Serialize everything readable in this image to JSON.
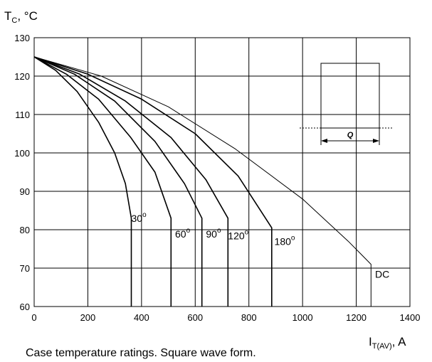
{
  "chart_data": {
    "type": "line",
    "title": "",
    "caption": "Case temperature ratings. Square wave form.",
    "ylabel": {
      "main": "T",
      "sub": "C",
      "rest": ", °C"
    },
    "xlabel": {
      "main": "I",
      "sub": "T(AV)",
      "rest": ", A"
    },
    "xlim": [
      0,
      1400
    ],
    "ylim": [
      60,
      130
    ],
    "xticks": [
      0,
      200,
      400,
      600,
      800,
      1000,
      1200,
      1400
    ],
    "yticks": [
      60,
      70,
      80,
      90,
      100,
      110,
      120,
      130
    ],
    "grid": true,
    "series": [
      {
        "name": "30",
        "deg": true,
        "label_at": [
          362,
          82
        ],
        "points": [
          [
            0,
            125
          ],
          [
            80,
            121.5
          ],
          [
            160,
            116
          ],
          [
            240,
            108
          ],
          [
            300,
            100
          ],
          [
            340,
            92
          ],
          [
            362,
            83
          ],
          [
            362,
            60
          ]
        ]
      },
      {
        "name": "60",
        "deg": true,
        "label_at": [
          525,
          78
        ],
        "points": [
          [
            0,
            125
          ],
          [
            120,
            120.5
          ],
          [
            240,
            114
          ],
          [
            360,
            104
          ],
          [
            450,
            95
          ],
          [
            510,
            83
          ],
          [
            510,
            60
          ]
        ]
      },
      {
        "name": "90",
        "deg": true,
        "label_at": [
          640,
          78
        ],
        "points": [
          [
            0,
            125
          ],
          [
            150,
            120.5
          ],
          [
            300,
            113.5
          ],
          [
            450,
            103
          ],
          [
            560,
            92
          ],
          [
            625,
            83
          ],
          [
            625,
            60
          ]
        ]
      },
      {
        "name": "120",
        "deg": true,
        "label_at": [
          722,
          77.5
        ],
        "points": [
          [
            0,
            125
          ],
          [
            170,
            120.5
          ],
          [
            340,
            113.5
          ],
          [
            510,
            104
          ],
          [
            640,
            93
          ],
          [
            722,
            83
          ],
          [
            722,
            60
          ]
        ]
      },
      {
        "name": "180",
        "deg": true,
        "label_at": [
          895,
          76
        ],
        "points": [
          [
            0,
            125
          ],
          [
            200,
            120.5
          ],
          [
            400,
            114
          ],
          [
            600,
            105
          ],
          [
            760,
            94
          ],
          [
            885,
            80.5
          ],
          [
            885,
            60
          ]
        ]
      },
      {
        "name": "DC",
        "deg": false,
        "label_at": [
          1270,
          67.5
        ],
        "points": [
          [
            0,
            125
          ],
          [
            250,
            120
          ],
          [
            500,
            112
          ],
          [
            750,
            101
          ],
          [
            1000,
            88
          ],
          [
            1170,
            77
          ],
          [
            1255,
            71
          ],
          [
            1255,
            60
          ]
        ]
      }
    ],
    "inset": {
      "label": "Q"
    }
  }
}
